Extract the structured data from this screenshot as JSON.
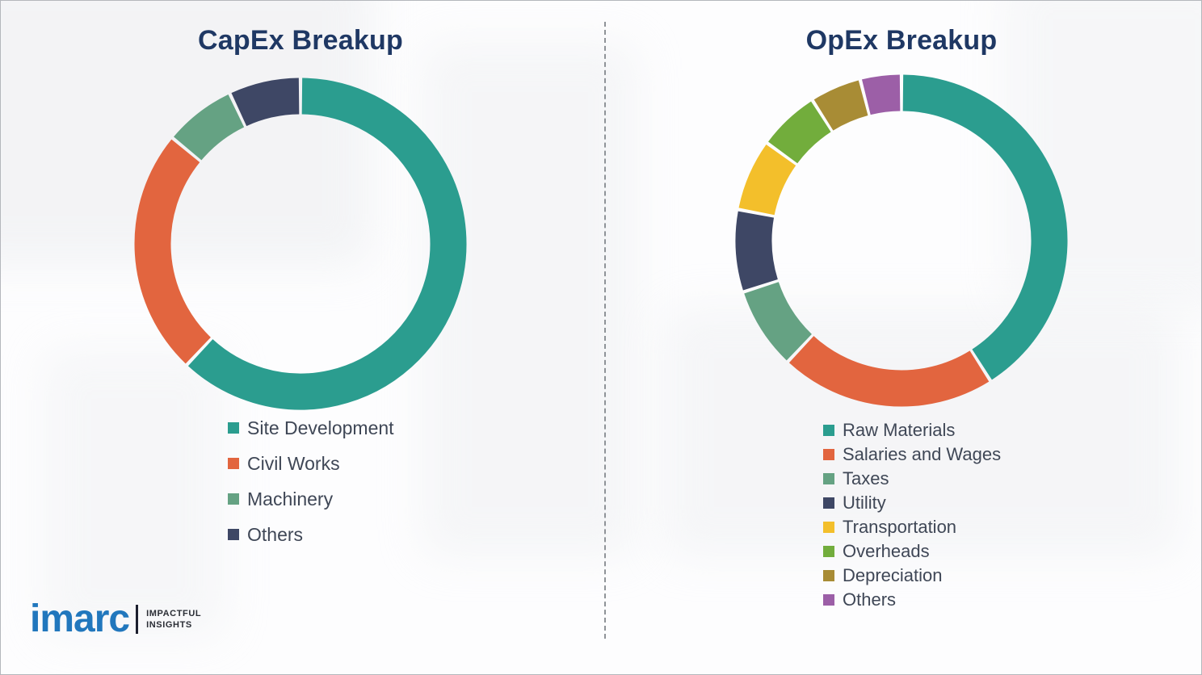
{
  "chart_data": [
    {
      "type": "donut",
      "title": "CapEx Breakup",
      "legend_position": "bottom-left",
      "grid": false,
      "segments": [
        {
          "label": "Site Development",
          "value": 62,
          "color": "#2b9d8f"
        },
        {
          "label": "Civil Works",
          "value": 24,
          "color": "#e2653f"
        },
        {
          "label": "Machinery",
          "value": 7,
          "color": "#65a283"
        },
        {
          "label": "Others",
          "value": 7,
          "color": "#3e4765"
        }
      ]
    },
    {
      "type": "donut",
      "title": "OpEx Breakup",
      "legend_position": "bottom-left",
      "grid": false,
      "segments": [
        {
          "label": "Raw Materials",
          "value": 41,
          "color": "#2b9d8f"
        },
        {
          "label": "Salaries and Wages",
          "value": 21,
          "color": "#e2653f"
        },
        {
          "label": "Taxes",
          "value": 8,
          "color": "#65a283"
        },
        {
          "label": "Utility",
          "value": 8,
          "color": "#3e4765"
        },
        {
          "label": "Transportation",
          "value": 7,
          "color": "#f3bf2b"
        },
        {
          "label": "Overheads",
          "value": 6,
          "color": "#72ad3c"
        },
        {
          "label": "Depreciation",
          "value": 5,
          "color": "#a88c35"
        },
        {
          "label": "Others",
          "value": 4,
          "color": "#9c5fa7"
        }
      ]
    }
  ],
  "logo": {
    "brand": "imarc",
    "tagline_line1": "IMPACTFUL",
    "tagline_line2": "INSIGHTS"
  },
  "colors": {
    "title": "#1f3864",
    "legend_text": "#3f4756",
    "logo_blue": "#2177bd"
  }
}
